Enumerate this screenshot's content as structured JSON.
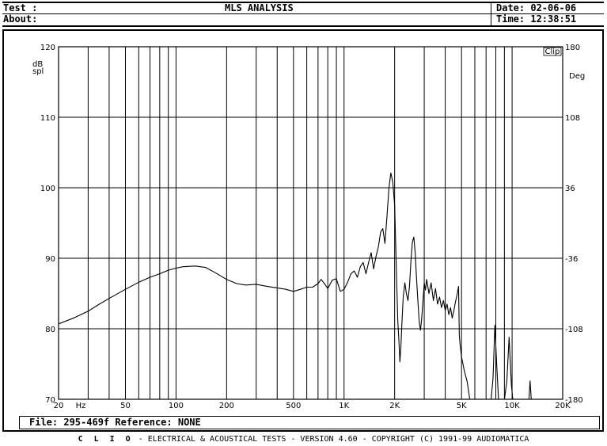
{
  "header": {
    "test_label": "Test :",
    "about_label": "About:",
    "title": "MLS ANALYSIS",
    "date_label": "Date: 02-06-06",
    "time_label": "Time: 12:38:51"
  },
  "file_line": "File: 295-469f Reference: NONE",
  "footer": {
    "brand": "C L I O",
    "text": " -  ELECTRICAL & ACOUSTICAL TESTS  -  VERSION 4.60  -  COPYRIGHT (C) 1991-99 AUDIOMATICA"
  },
  "chart_data": {
    "type": "line",
    "x_scale": "log",
    "xlim": [
      20,
      20000
    ],
    "ylim": [
      70,
      120
    ],
    "y2lim": [
      -180,
      180
    ],
    "grid": true,
    "ylabel": "dB spl",
    "y2label": "Deg",
    "x_unit_label": "Hz",
    "clip_label": "Clip",
    "x_tick_labels": [
      {
        "x": 20,
        "label": "20"
      },
      {
        "x": 50,
        "label": "50"
      },
      {
        "x": 100,
        "label": "100"
      },
      {
        "x": 200,
        "label": "200"
      },
      {
        "x": 500,
        "label": "500"
      },
      {
        "x": 1000,
        "label": "1K"
      },
      {
        "x": 2000,
        "label": "2K"
      },
      {
        "x": 5000,
        "label": "5K"
      },
      {
        "x": 10000,
        "label": "10K"
      },
      {
        "x": 20000,
        "label": "20K"
      }
    ],
    "y_ticks": [
      70,
      80,
      90,
      100,
      110,
      120
    ],
    "y2_ticks": [
      -180,
      -108,
      -36,
      36,
      108,
      180
    ],
    "series": [
      {
        "color": "#000000",
        "points": [
          [
            20,
            80.7
          ],
          [
            25,
            81.6
          ],
          [
            30,
            82.5
          ],
          [
            35,
            83.5
          ],
          [
            40,
            84.3
          ],
          [
            50,
            85.6
          ],
          [
            60,
            86.6
          ],
          [
            70,
            87.3
          ],
          [
            80,
            87.8
          ],
          [
            90,
            88.3
          ],
          [
            100,
            88.6
          ],
          [
            110,
            88.8
          ],
          [
            130,
            88.9
          ],
          [
            150,
            88.7
          ],
          [
            170,
            88.0
          ],
          [
            200,
            87.0
          ],
          [
            230,
            86.4
          ],
          [
            260,
            86.2
          ],
          [
            300,
            86.3
          ],
          [
            350,
            86.0
          ],
          [
            400,
            85.8
          ],
          [
            450,
            85.6
          ],
          [
            500,
            85.3
          ],
          [
            550,
            85.6
          ],
          [
            600,
            85.9
          ],
          [
            650,
            85.9
          ],
          [
            700,
            86.4
          ],
          [
            730,
            87.0
          ],
          [
            770,
            86.3
          ],
          [
            800,
            85.7
          ],
          [
            850,
            86.9
          ],
          [
            900,
            87.1
          ],
          [
            950,
            85.3
          ],
          [
            1000,
            85.6
          ],
          [
            1050,
            86.6
          ],
          [
            1100,
            87.8
          ],
          [
            1150,
            88.2
          ],
          [
            1200,
            87.3
          ],
          [
            1250,
            88.8
          ],
          [
            1300,
            89.4
          ],
          [
            1350,
            87.8
          ],
          [
            1400,
            89.4
          ],
          [
            1450,
            90.8
          ],
          [
            1500,
            88.5
          ],
          [
            1550,
            90.3
          ],
          [
            1600,
            91.6
          ],
          [
            1650,
            93.7
          ],
          [
            1700,
            94.2
          ],
          [
            1750,
            92.1
          ],
          [
            1800,
            96.0
          ],
          [
            1850,
            100.0
          ],
          [
            1900,
            102.1
          ],
          [
            1950,
            100.8
          ],
          [
            2000,
            97.5
          ],
          [
            2030,
            92.0
          ],
          [
            2060,
            86.0
          ],
          [
            2090,
            81.0
          ],
          [
            2120,
            78.4
          ],
          [
            2150,
            75.3
          ],
          [
            2180,
            77.5
          ],
          [
            2210,
            80.9
          ],
          [
            2250,
            84.5
          ],
          [
            2300,
            86.5
          ],
          [
            2350,
            85.0
          ],
          [
            2400,
            84.0
          ],
          [
            2450,
            86.0
          ],
          [
            2500,
            89.5
          ],
          [
            2550,
            92.3
          ],
          [
            2600,
            93.0
          ],
          [
            2650,
            90.8
          ],
          [
            2700,
            87.2
          ],
          [
            2750,
            84.0
          ],
          [
            2800,
            81.0
          ],
          [
            2850,
            79.8
          ],
          [
            2900,
            81.5
          ],
          [
            2950,
            84.0
          ],
          [
            3000,
            86.5
          ],
          [
            3050,
            85.5
          ],
          [
            3100,
            87.0
          ],
          [
            3200,
            85.0
          ],
          [
            3300,
            86.5
          ],
          [
            3400,
            84.0
          ],
          [
            3500,
            85.7
          ],
          [
            3600,
            83.5
          ],
          [
            3700,
            84.5
          ],
          [
            3800,
            83.0
          ],
          [
            3900,
            84.0
          ],
          [
            4000,
            82.6
          ],
          [
            4100,
            83.5
          ],
          [
            4200,
            82.0
          ],
          [
            4300,
            83.0
          ],
          [
            4400,
            81.5
          ],
          [
            4500,
            82.5
          ],
          [
            4600,
            83.8
          ],
          [
            4700,
            84.8
          ],
          [
            4800,
            86.0
          ],
          [
            4850,
            79.0
          ],
          [
            4900,
            77.8
          ],
          [
            5000,
            76.0
          ],
          [
            5200,
            74.0
          ],
          [
            5400,
            72.5
          ],
          [
            5600,
            70.0
          ]
        ]
      },
      {
        "color": "#000000",
        "points": [
          [
            7500,
            70.0
          ],
          [
            7700,
            73.0
          ],
          [
            7900,
            80.5
          ],
          [
            8100,
            75.0
          ],
          [
            8300,
            70.0
          ]
        ]
      },
      {
        "color": "#000000",
        "points": [
          [
            9000,
            70.0
          ],
          [
            9300,
            72.5
          ],
          [
            9600,
            78.8
          ],
          [
            9900,
            72.0
          ],
          [
            10100,
            70.0
          ]
        ]
      },
      {
        "color": "#000000",
        "points": [
          [
            12600,
            70.0
          ],
          [
            12800,
            72.6
          ],
          [
            13000,
            70.0
          ]
        ]
      }
    ]
  }
}
